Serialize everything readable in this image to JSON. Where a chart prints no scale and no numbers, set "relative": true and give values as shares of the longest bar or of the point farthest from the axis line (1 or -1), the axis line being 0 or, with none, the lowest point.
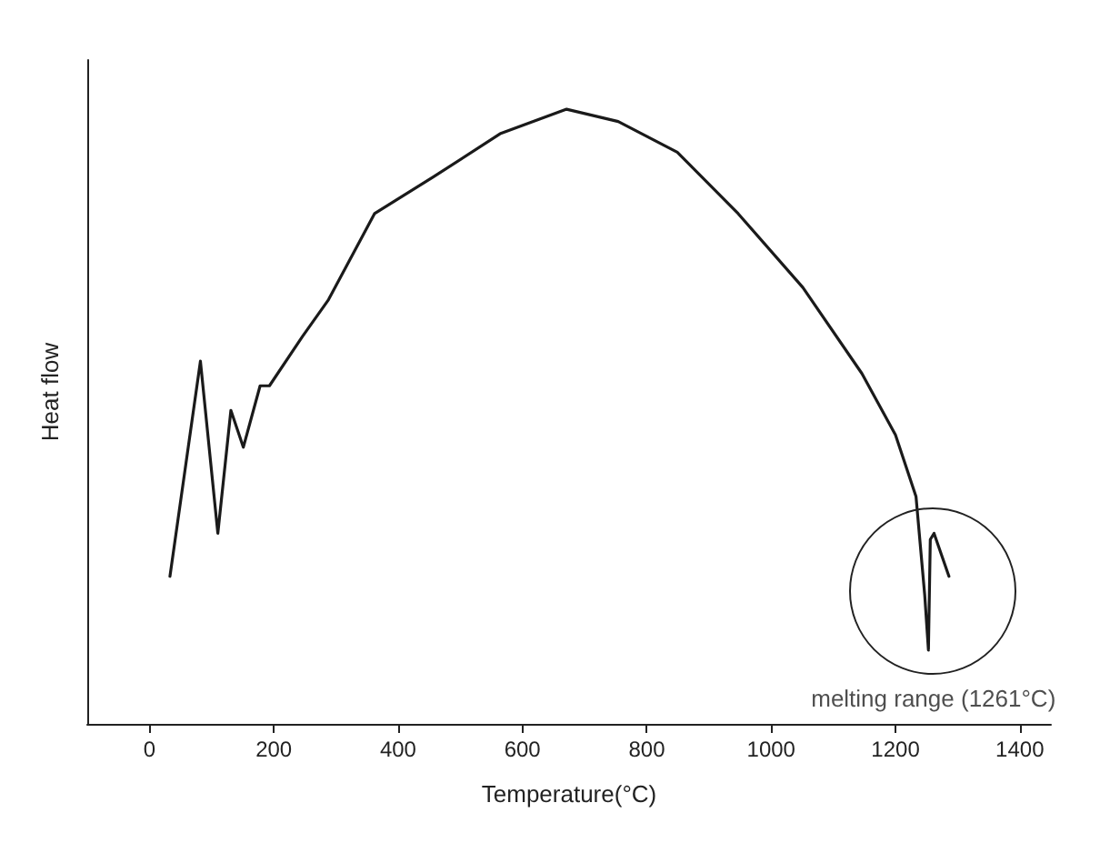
{
  "chart_data": {
    "type": "line",
    "xlabel": "Temperature(°C)",
    "ylabel": "Heat flow",
    "relative": true,
    "grid": false,
    "marker": "none",
    "line_style": "solid",
    "xlim": [
      -100,
      1450
    ],
    "xticks": [
      0,
      200,
      400,
      600,
      800,
      1000,
      1200,
      1400
    ],
    "series": [
      {
        "color": "#1a1a1a",
        "x": [
          33,
          82,
          110,
          131,
          151,
          178,
          193,
          246,
          288,
          362,
          457,
          564,
          671,
          754,
          849,
          947,
          1051,
          1146,
          1200,
          1233,
          1247,
          1253,
          1256,
          1262,
          1286
        ],
        "values": [
          0.24,
          0.59,
          0.31,
          0.51,
          0.45,
          0.55,
          0.55,
          0.63,
          0.69,
          0.83,
          0.89,
          0.96,
          1.0,
          0.98,
          0.93,
          0.83,
          0.71,
          0.57,
          0.47,
          0.37,
          0.21,
          0.12,
          0.3,
          0.31,
          0.24
        ]
      }
    ],
    "annotations": [
      {
        "text": "melting range (1261°C)",
        "x": 1261,
        "y": 0.12
      }
    ]
  }
}
